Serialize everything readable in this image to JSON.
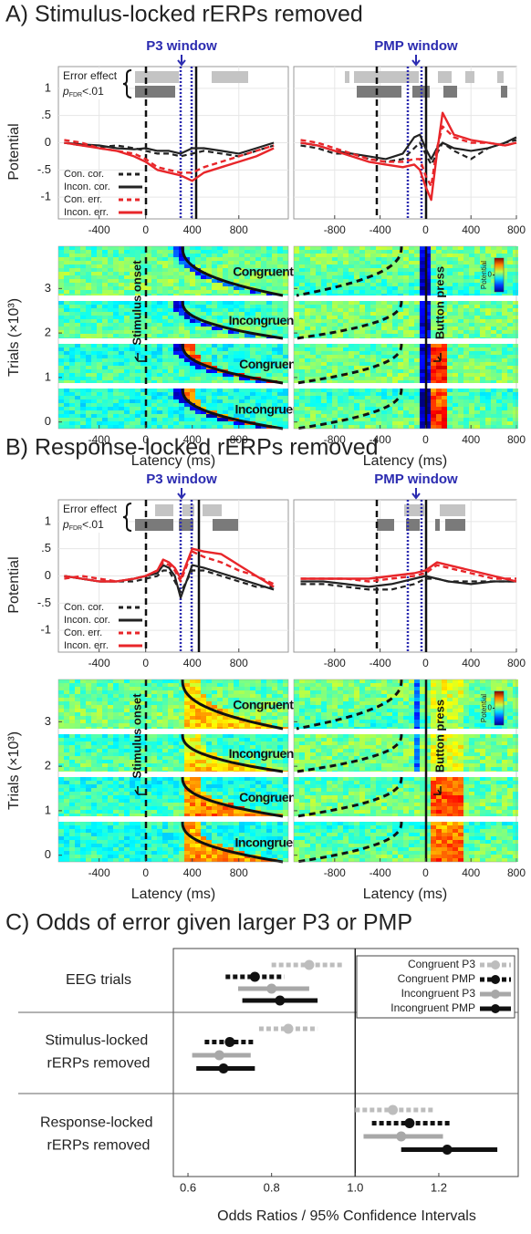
{
  "chart_data": [
    {
      "type": "line",
      "panel_title": "A) Stimulus-locked rERPs removed",
      "window_label": "P3 window",
      "effect_label": "Error effect",
      "sig_label": {
        "p": "p",
        "sub": "FDR",
        "rest": "<.01"
      },
      "ylabel": "Potential",
      "grid": true,
      "xlim": [
        -750,
        1225
      ],
      "ylim": [
        -1.4,
        1.4
      ],
      "xticks": [
        -400,
        0,
        400,
        800
      ],
      "yticks": [
        1,
        {
          "value": 0.5,
          "label": ".5"
        },
        0,
        {
          "value": -0.5,
          "label": "-.5"
        },
        -1
      ],
      "x": [
        -700,
        -550,
        -400,
        -250,
        -100,
        0,
        100,
        200,
        300,
        400,
        500,
        650,
        800,
        950,
        1100
      ],
      "series": [
        {
          "name": "Con. cor.",
          "color": "#222222",
          "style": "dashed",
          "values": [
            0,
            -0.05,
            -0.08,
            -0.05,
            -0.1,
            -0.15,
            -0.2,
            -0.2,
            -0.25,
            -0.2,
            -0.15,
            -0.2,
            -0.25,
            -0.15,
            -0.05
          ]
        },
        {
          "name": "Incon. cor.",
          "color": "#222222",
          "style": "solid",
          "values": [
            0,
            -0.03,
            -0.05,
            -0.1,
            -0.12,
            -0.1,
            -0.15,
            -0.15,
            -0.2,
            -0.1,
            -0.1,
            -0.15,
            -0.2,
            -0.1,
            0
          ]
        },
        {
          "name": "Con. err.",
          "color": "#e8262a",
          "style": "dashed",
          "values": [
            0.05,
            0,
            -0.1,
            -0.15,
            -0.2,
            -0.3,
            -0.45,
            -0.5,
            -0.55,
            -0.55,
            -0.45,
            -0.35,
            -0.25,
            -0.15,
            -0.05
          ]
        },
        {
          "name": "Incon. err.",
          "color": "#e8262a",
          "style": "solid",
          "values": [
            0,
            -0.05,
            -0.1,
            -0.15,
            -0.25,
            -0.35,
            -0.5,
            -0.55,
            -0.6,
            -0.7,
            -0.55,
            -0.45,
            -0.35,
            -0.25,
            -0.1
          ]
        }
      ]
    },
    {
      "type": "line",
      "window_label": "PMP window",
      "grid": true,
      "ytick_labels": false,
      "xlim": [
        -1160,
        800
      ],
      "ylim": [
        -1.4,
        1.4
      ],
      "xticks": [
        -800,
        -400,
        0,
        400,
        800
      ],
      "yticks": [
        1,
        0.5,
        0,
        -0.5,
        -1
      ],
      "x": [
        -1100,
        -950,
        -800,
        -650,
        -500,
        -350,
        -200,
        -100,
        -50,
        0,
        50,
        100,
        150,
        250,
        400,
        550,
        700,
        800
      ],
      "series": [
        {
          "color": "#222222",
          "style": "dashed",
          "values": [
            -0.05,
            -0.1,
            -0.2,
            -0.2,
            -0.3,
            -0.35,
            -0.3,
            -0.1,
            0,
            -0.2,
            -0.4,
            -0.2,
            0,
            -0.15,
            -0.3,
            -0.1,
            0,
            0.05
          ]
        },
        {
          "color": "#222222",
          "style": "solid",
          "values": [
            0,
            -0.05,
            -0.15,
            -0.2,
            -0.25,
            -0.3,
            -0.2,
            0.1,
            0.15,
            -0.1,
            -0.3,
            -0.1,
            0,
            -0.1,
            -0.15,
            -0.1,
            0,
            0.1
          ]
        },
        {
          "color": "#e8262a",
          "style": "dashed",
          "values": [
            0.05,
            0,
            -0.1,
            -0.2,
            -0.3,
            -0.35,
            -0.35,
            -0.3,
            -0.3,
            -0.6,
            -0.8,
            -0.1,
            0.3,
            0.1,
            0,
            0,
            -0.05,
            0
          ]
        },
        {
          "color": "#e8262a",
          "style": "solid",
          "values": [
            0,
            -0.05,
            -0.15,
            -0.25,
            -0.35,
            -0.4,
            -0.45,
            -0.4,
            -0.5,
            -0.8,
            -1.05,
            -0.2,
            0.55,
            0.15,
            0.05,
            0,
            -0.05,
            0
          ]
        }
      ]
    },
    {
      "type": "heatmap",
      "xlabel": "Latency (ms)",
      "ylabel": "Trials (×10³)",
      "annotation": "Stimulus onset",
      "categories": [
        "Congruent correct",
        "Incongruent correct",
        "Congruent error",
        "Incongruent error"
      ],
      "xlim": [
        -750,
        1225
      ],
      "ylim": [
        -0.15,
        3.95
      ],
      "xticks": [
        -400,
        0,
        400,
        800
      ],
      "yticks": [
        0,
        1,
        2,
        3
      ]
    },
    {
      "type": "heatmap",
      "xlabel": "Latency (ms)",
      "annotation": "Button press",
      "ytick_labels": false,
      "colorbar": {
        "label": "Potential",
        "lim": [
          -1,
          1
        ],
        "ticks": [
          0
        ]
      },
      "xlim": [
        -1160,
        800
      ],
      "ylim": [
        -0.15,
        3.95
      ],
      "xticks": [
        -800,
        -400,
        0,
        400,
        800
      ],
      "yticks": [
        0,
        1,
        2,
        3
      ]
    },
    {
      "type": "line",
      "panel_title": "B) Response-locked rERPs removed",
      "window_label": "P3 window",
      "effect_label": "Error effect",
      "sig_label": {
        "p": "p",
        "sub": "FDR",
        "rest": "<.01"
      },
      "ylabel": "Potential",
      "grid": true,
      "xlim": [
        -750,
        1225
      ],
      "ylim": [
        -1.4,
        1.4
      ],
      "xticks": [
        -400,
        0,
        400,
        800
      ],
      "yticks": [
        1,
        {
          "value": 0.5,
          "label": ".5"
        },
        0,
        {
          "value": -0.5,
          "label": "-.5"
        },
        -1
      ],
      "x": [
        -700,
        -550,
        -400,
        -250,
        -100,
        0,
        100,
        150,
        200,
        250,
        300,
        400,
        500,
        650,
        800,
        950,
        1100
      ],
      "series": [
        {
          "name": "Con. cor.",
          "color": "#222222",
          "style": "dashed",
          "values": [
            0,
            -0.05,
            -0.1,
            -0.1,
            -0.1,
            -0.05,
            0,
            0.1,
            0.1,
            -0.1,
            -0.3,
            0.1,
            0.1,
            0,
            -0.1,
            -0.2,
            -0.2
          ]
        },
        {
          "name": "Incon. cor.",
          "color": "#222222",
          "style": "solid",
          "values": [
            0,
            -0.05,
            -0.1,
            -0.1,
            -0.05,
            0,
            0.05,
            0.2,
            0.15,
            0,
            -0.4,
            0.2,
            0.15,
            0.05,
            -0.05,
            -0.15,
            -0.25
          ]
        },
        {
          "name": "Con. err.",
          "color": "#e8262a",
          "style": "dashed",
          "values": [
            -0.05,
            0,
            -0.05,
            -0.1,
            -0.05,
            0,
            0.1,
            0.25,
            0.2,
            0.1,
            -0.1,
            0.45,
            0.35,
            0.25,
            0.1,
            0,
            -0.15
          ]
        },
        {
          "name": "Incon. err.",
          "color": "#e8262a",
          "style": "solid",
          "values": [
            0,
            -0.05,
            -0.1,
            -0.1,
            -0.05,
            0,
            0.1,
            0.3,
            0.25,
            0.15,
            -0.05,
            0.5,
            0.45,
            0.4,
            0.2,
            0,
            -0.2
          ]
        }
      ]
    },
    {
      "type": "line",
      "window_label": "PMP window",
      "grid": true,
      "ytick_labels": false,
      "xlim": [
        -1160,
        800
      ],
      "ylim": [
        -1.4,
        1.4
      ],
      "xticks": [
        -800,
        -400,
        0,
        400,
        800
      ],
      "yticks": [
        1,
        0.5,
        0,
        -0.5,
        -1
      ],
      "x": [
        -1100,
        -900,
        -700,
        -500,
        -300,
        -100,
        0,
        100,
        200,
        400,
        600,
        800
      ],
      "series": [
        {
          "color": "#222222",
          "style": "dashed",
          "values": [
            -0.15,
            -0.15,
            -0.2,
            -0.25,
            -0.25,
            -0.15,
            -0.05,
            -0.05,
            -0.1,
            -0.1,
            -0.1,
            -0.1
          ]
        },
        {
          "color": "#222222",
          "style": "solid",
          "values": [
            -0.1,
            -0.1,
            -0.15,
            -0.2,
            -0.15,
            -0.05,
            0,
            -0.05,
            -0.1,
            -0.15,
            -0.1,
            -0.1
          ]
        },
        {
          "color": "#e8262a",
          "style": "dashed",
          "values": [
            -0.05,
            -0.05,
            -0.05,
            -0.1,
            -0.05,
            0,
            0.05,
            0.2,
            0.15,
            0.05,
            -0.05,
            -0.05
          ]
        },
        {
          "color": "#e8262a",
          "style": "solid",
          "values": [
            -0.05,
            -0.05,
            -0.05,
            -0.05,
            0,
            0.05,
            0.1,
            0.25,
            0.2,
            0.1,
            0,
            -0.1
          ]
        }
      ]
    },
    {
      "type": "heatmap",
      "xlabel": "Latency (ms)",
      "ylabel": "Trials (×10³)",
      "annotation": "Stimulus onset",
      "categories": [
        "Congruent correct",
        "Incongruent correct",
        "Congruent error",
        "Incongruent error"
      ],
      "xlim": [
        -750,
        1225
      ],
      "ylim": [
        -0.15,
        3.95
      ],
      "xticks": [
        -400,
        0,
        400,
        800
      ],
      "yticks": [
        0,
        1,
        2,
        3
      ]
    },
    {
      "type": "heatmap",
      "xlabel": "Latency (ms)",
      "annotation": "Button press",
      "ytick_labels": false,
      "colorbar": {
        "label": "Potential",
        "lim": [
          -1,
          1
        ],
        "ticks": [
          0
        ]
      },
      "xlim": [
        -1160,
        800
      ],
      "ylim": [
        -0.15,
        3.95
      ],
      "xticks": [
        -800,
        -400,
        0,
        400,
        800
      ],
      "yticks": [
        0,
        1,
        2,
        3
      ]
    },
    {
      "type": "forest",
      "title": "C) Odds of error given larger P3 or PMP",
      "xlabel": "Odds Ratios / 95% Confidence Intervals",
      "xlim": [
        0.565,
        1.39
      ],
      "xticks": [
        0.6,
        0.8,
        {
          "value": 1,
          "label": "1.0"
        },
        1.2
      ],
      "reference_line": 1,
      "categories": [
        "EEG trials",
        "Stimulus-locked rERPs removed",
        "Response-locked rERPs removed"
      ],
      "series": [
        {
          "name": "Congruent P3",
          "color": "#bdbdbd",
          "style": "dashed",
          "values": [
            0.89,
            0.84,
            1.09
          ],
          "lower": [
            0.8,
            0.77,
            1.0
          ],
          "upper": [
            0.97,
            0.91,
            1.19
          ]
        },
        {
          "name": "Congruent PMP",
          "color": "#111111",
          "style": "dashed",
          "values": [
            0.76,
            0.7,
            1.13
          ],
          "lower": [
            0.69,
            0.64,
            1.04
          ],
          "upper": [
            0.83,
            0.76,
            1.23
          ]
        },
        {
          "name": "Incongruent P3",
          "color": "#a8a8a8",
          "style": "solid",
          "values": [
            0.8,
            0.675,
            1.11
          ],
          "lower": [
            0.72,
            0.61,
            1.02
          ],
          "upper": [
            0.89,
            0.75,
            1.21
          ]
        },
        {
          "name": "Incongruent PMP",
          "color": "#111111",
          "style": "solid",
          "values": [
            0.82,
            0.685,
            1.22
          ],
          "lower": [
            0.73,
            0.62,
            1.11
          ],
          "upper": [
            0.91,
            0.76,
            1.34
          ]
        }
      ]
    }
  ]
}
